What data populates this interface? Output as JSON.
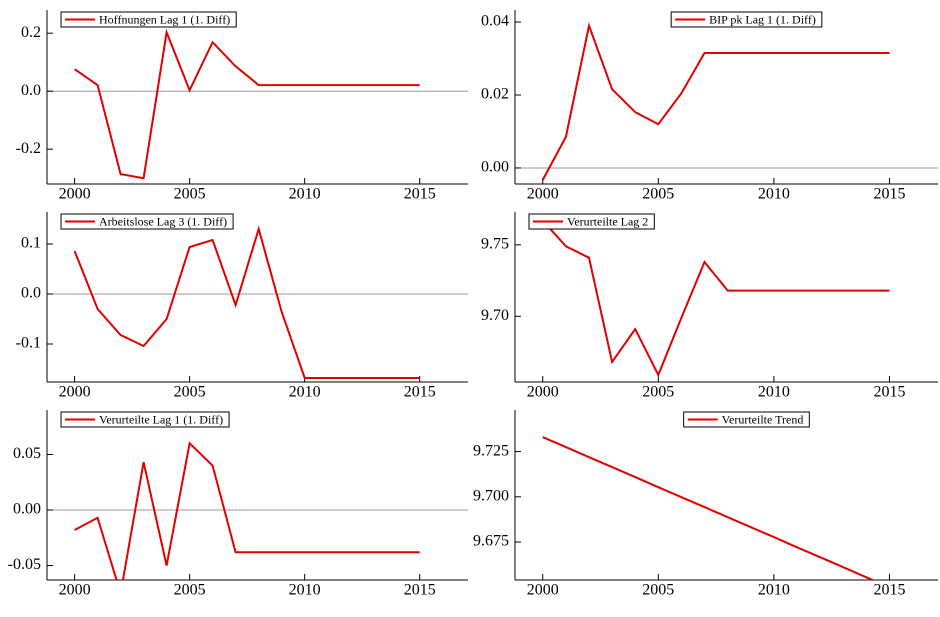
{
  "chart_data": [
    {
      "type": "line",
      "x": [
        2000,
        2001,
        2002,
        2003,
        2004,
        2005,
        2006,
        2007,
        2008,
        2009,
        2010,
        2011,
        2012,
        2013,
        2014,
        2015
      ],
      "series": [
        {
          "name": "Hoffnungen Lag 1 (1. Diff)",
          "color": "#e00000",
          "values": [
            0.076,
            0.021,
            -0.286,
            -0.3,
            0.203,
            0.003,
            0.169,
            0.086,
            0.021,
            0.021,
            0.021,
            0.021,
            0.021,
            0.021,
            0.021,
            0.021
          ]
        }
      ],
      "xlim": [
        1998.8,
        2017.1
      ],
      "xticks": [
        2000,
        2005,
        2010,
        2015
      ],
      "ylim": [
        -0.32,
        0.28
      ],
      "yticks": [
        -0.2,
        {
          "value": 0,
          "label": "0.0"
        },
        0.2
      ],
      "hline": 0,
      "legend": "upper left"
    },
    {
      "type": "line",
      "x": [
        2000,
        2001,
        2002,
        2003,
        2004,
        2005,
        2006,
        2007,
        2008,
        2009,
        2010,
        2011,
        2012,
        2013,
        2014,
        2015
      ],
      "series": [
        {
          "name": "BIP pk Lag 1 (1. Diff)",
          "color": "#e00000",
          "values": [
            -0.0033,
            0.0085,
            0.039,
            0.0216,
            0.0153,
            0.012,
            0.0205,
            0.0315,
            0.0315,
            0.0315,
            0.0315,
            0.0315,
            0.0315,
            0.0315,
            0.0315,
            0.0315
          ]
        }
      ],
      "xlim": [
        1998.8,
        2017.1
      ],
      "xticks": [
        2000,
        2005,
        2010,
        2015
      ],
      "ylim": [
        -0.0044,
        0.0433
      ],
      "yticks": [
        {
          "value": 0,
          "label": "0.00"
        },
        0.02,
        0.04
      ],
      "hline": 0,
      "legend": "upper center"
    },
    {
      "type": "line",
      "x": [
        2000,
        2001,
        2002,
        2003,
        2004,
        2005,
        2006,
        2007,
        2008,
        2009,
        2010,
        2011,
        2012,
        2013,
        2014,
        2015
      ],
      "series": [
        {
          "name": "Arbeitslose Lag 3 (1. Diff)",
          "color": "#e00000",
          "values": [
            0.086,
            -0.03,
            -0.082,
            -0.104,
            -0.05,
            0.094,
            0.108,
            -0.022,
            0.13,
            -0.036,
            -0.168,
            -0.168,
            -0.168,
            -0.168,
            -0.168,
            -0.168
          ]
        }
      ],
      "xlim": [
        1998.8,
        2017.1
      ],
      "xticks": [
        2000,
        2005,
        2010,
        2015
      ],
      "ylim": [
        -0.176,
        0.164
      ],
      "yticks": [
        -0.1,
        {
          "value": 0,
          "label": "0.0"
        },
        0.1
      ],
      "hline": 0,
      "legend": "upper left"
    },
    {
      "type": "line",
      "x": [
        2000,
        2001,
        2002,
        2003,
        2004,
        2005,
        2006,
        2007,
        2008,
        2009,
        2010,
        2011,
        2012,
        2013,
        2014,
        2015
      ],
      "series": [
        {
          "name": "Verurteilte Lag 2",
          "color": "#e00000",
          "values": [
            9.767,
            9.749,
            9.741,
            9.668,
            9.691,
            9.659,
            9.699,
            9.738,
            9.718,
            9.718,
            9.718,
            9.718,
            9.718,
            9.718,
            9.718,
            9.718
          ]
        }
      ],
      "xlim": [
        1998.8,
        2017.1
      ],
      "xticks": [
        2000,
        2005,
        2010,
        2015
      ],
      "ylim": [
        9.654,
        9.773
      ],
      "yticks": [
        {
          "value": 9.7,
          "label": "9.70"
        },
        9.75
      ],
      "legend": "upper left"
    },
    {
      "type": "line",
      "x": [
        2000,
        2001,
        2002,
        2003,
        2004,
        2005,
        2006,
        2007,
        2008,
        2009,
        2010,
        2011,
        2012,
        2013,
        2014,
        2015
      ],
      "series": [
        {
          "name": "Verurteilte Lag 1 (1. Diff)",
          "color": "#e00000",
          "values": [
            -0.018,
            -0.007,
            -0.075,
            0.043,
            -0.05,
            0.06,
            0.04,
            -0.038,
            -0.038,
            -0.038,
            -0.038,
            -0.038,
            -0.038,
            -0.038,
            -0.038,
            -0.038
          ]
        }
      ],
      "xlim": [
        1998.8,
        2017.1
      ],
      "xticks": [
        2000,
        2005,
        2010,
        2015
      ],
      "ylim": [
        -0.063,
        0.09
      ],
      "yticks": [
        -0.05,
        {
          "value": 0,
          "label": "0.00"
        },
        0.05
      ],
      "hline": 0,
      "legend": "upper left"
    },
    {
      "type": "line",
      "x": [
        2000,
        2001,
        2002,
        2003,
        2004,
        2005,
        2006,
        2007,
        2008,
        2009,
        2010,
        2011,
        2012,
        2013,
        2014,
        2015
      ],
      "series": [
        {
          "name": "Verurteilte Trend",
          "color": "#e00000",
          "values": [
            9.733,
            9.7275,
            9.7219,
            9.7164,
            9.7109,
            9.7053,
            9.6998,
            9.6943,
            9.6887,
            9.6832,
            9.6777,
            9.6721,
            9.6666,
            9.6611,
            9.6555,
            9.65
          ]
        }
      ],
      "xlim": [
        1998.8,
        2017.1
      ],
      "xticks": [
        2000,
        2005,
        2010,
        2015
      ],
      "ylim": [
        9.654,
        9.748
      ],
      "yticks": [
        9.675,
        {
          "value": 9.7,
          "label": "9.700"
        },
        9.725
      ],
      "legend": "upper center"
    }
  ]
}
